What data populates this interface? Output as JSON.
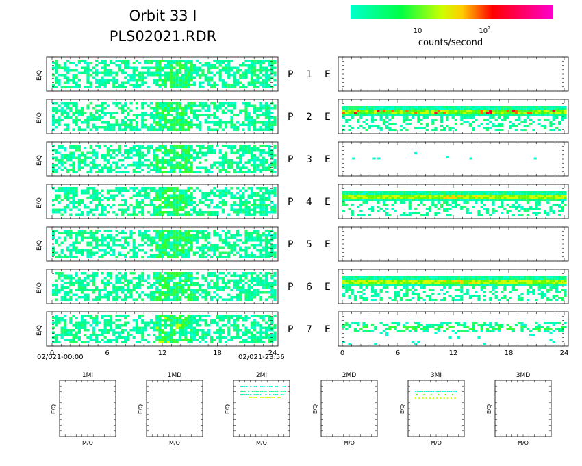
{
  "title": {
    "line1": "Orbit 33 I",
    "line2": "PLS02021.RDR"
  },
  "colorbar": {
    "label": "counts/second",
    "tick1": "10",
    "tick2_base": "10",
    "tick2_exp": "2",
    "colors": [
      "#00ffcc",
      "#00ff66",
      "#66ff00",
      "#ccff00",
      "#ffcc00",
      "#ff6600",
      "#ff0033",
      "#ff0099",
      "#ff00cc"
    ]
  },
  "chart_data": {
    "type": "heatmap",
    "y_label": "E/Q",
    "x_ticks": [
      "0",
      "6",
      "12",
      "18",
      "24"
    ],
    "xlim": [
      0,
      24
    ],
    "time_start": "02/021-00:00",
    "time_end": "02/021-23:56",
    "rows": [
      {
        "p": "P",
        "n": "1",
        "e": "E",
        "left": "noise-fill",
        "right": "empty"
      },
      {
        "p": "P",
        "n": "2",
        "e": "E",
        "left": "noise-fill",
        "right": "band-hot"
      },
      {
        "p": "P",
        "n": "3",
        "e": "E",
        "left": "noise-fill",
        "right": "sparse"
      },
      {
        "p": "P",
        "n": "4",
        "e": "E",
        "left": "noise-fill",
        "right": "band-warm"
      },
      {
        "p": "P",
        "n": "5",
        "e": "E",
        "left": "noise-fill",
        "right": "empty"
      },
      {
        "p": "P",
        "n": "6",
        "e": "E",
        "left": "noise-fill",
        "right": "band-warm"
      },
      {
        "p": "P",
        "n": "7",
        "e": "E",
        "left": "noise-fill",
        "right": "band-sparse"
      }
    ],
    "mass_panels": [
      {
        "title": "1MI",
        "xlabel": "M/Q",
        "ylabel": "E/Q",
        "content": "empty"
      },
      {
        "title": "1MD",
        "xlabel": "M/Q",
        "ylabel": "E/Q",
        "content": "empty"
      },
      {
        "title": "2MI",
        "xlabel": "M/Q",
        "ylabel": "E/Q",
        "content": "lines"
      },
      {
        "title": "2MD",
        "xlabel": "M/Q",
        "ylabel": "E/Q",
        "content": "empty"
      },
      {
        "title": "3MI",
        "xlabel": "M/Q",
        "ylabel": "E/Q",
        "content": "lines"
      },
      {
        "title": "3MD",
        "xlabel": "M/Q",
        "ylabel": "E/Q",
        "content": "empty"
      }
    ]
  }
}
